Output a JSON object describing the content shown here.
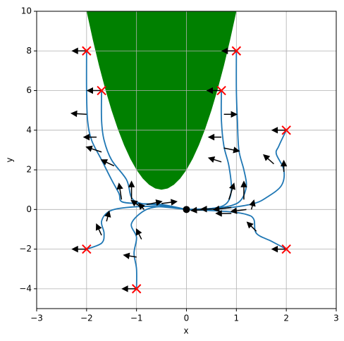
{
  "chart_data": {
    "type": "line",
    "x_label": "x",
    "y_label": "y",
    "xlim": [
      -3,
      3
    ],
    "ylim": [
      -5,
      10
    ],
    "xticks": [
      {
        "value": -3,
        "label": "−3"
      },
      {
        "value": -2,
        "label": "−2"
      },
      {
        "value": -1,
        "label": "−1"
      },
      0,
      1,
      2,
      3
    ],
    "yticks": [
      {
        "value": -4,
        "label": "−4"
      },
      {
        "value": -2,
        "label": "−2"
      },
      0,
      2,
      4,
      6,
      8,
      10
    ],
    "grid": true,
    "obstacle": {
      "color": "#008000",
      "x": [
        -2,
        -1.875,
        -1.75,
        -1.625,
        -1.5,
        -1.375,
        -1.25,
        -1.125,
        -1,
        -0.875,
        -0.75,
        -0.625,
        -0.5,
        -0.375,
        -0.25,
        -0.125,
        0,
        0.125,
        0.25,
        0.375,
        0.5,
        0.625,
        0.75,
        0.875,
        1
      ],
      "y": [
        10,
        8.5625,
        7.25,
        6.0625,
        5,
        4.0625,
        3.25,
        2.5625,
        2,
        1.5625,
        1.25,
        1.0625,
        1,
        1.0625,
        1.25,
        1.5625,
        2,
        2.5625,
        3.25,
        4.0625,
        5,
        6.0625,
        7.25,
        8.5625,
        10
      ]
    },
    "line_color": "#1f77b4",
    "start_color": "#ff0000",
    "series": [
      {
        "x": [
          -2,
          -2,
          -1.98,
          -1.9,
          -1.7,
          -1.5,
          -1.35,
          -1.3,
          -1.0,
          -0.5,
          0
        ],
        "y": [
          8,
          6,
          4.5,
          3.5,
          2.5,
          1.5,
          0.8,
          0.4,
          0.3,
          0.25,
          0
        ]
      },
      {
        "x": [
          1,
          1,
          1.02,
          1.05,
          1.15,
          1.2,
          1.1,
          0.9,
          0.5,
          0
        ],
        "y": [
          8,
          6,
          4.5,
          3,
          2,
          1.2,
          0.5,
          0.2,
          0.05,
          0
        ]
      },
      {
        "x": [
          -1.7,
          -1.7,
          -1.65,
          -1.5,
          -1.2,
          -1.1,
          -0.9,
          -0.5,
          0
        ],
        "y": [
          6,
          4.5,
          3.5,
          2.5,
          1.5,
          0.6,
          0.3,
          0.2,
          0
        ]
      },
      {
        "x": [
          0.7,
          0.7,
          0.75,
          0.85,
          0.9,
          0.8,
          0.5,
          0
        ],
        "y": [
          6,
          4.5,
          3.2,
          2.2,
          1.0,
          0.3,
          0.05,
          0
        ]
      },
      {
        "x": [
          2,
          1.85,
          1.8,
          1.95,
          1.9,
          1.6,
          1.35,
          0.9,
          0.4,
          0
        ],
        "y": [
          4,
          3.2,
          2.8,
          2.0,
          1.2,
          0.6,
          0.3,
          0.1,
          0,
          0
        ]
      },
      {
        "x": [
          2,
          1.7,
          1.4,
          1.35,
          1.2,
          0.8,
          0
        ],
        "y": [
          -2,
          -1.6,
          -1.2,
          -0.5,
          -0.25,
          -0.1,
          0
        ]
      },
      {
        "x": [
          -2,
          -1.7,
          -1.65,
          -1.7,
          -1.55,
          -1.2,
          -0.6,
          0
        ],
        "y": [
          -2,
          -1.7,
          -1.2,
          -0.6,
          -0.1,
          0.1,
          0.15,
          0
        ]
      },
      {
        "x": [
          -1,
          -1.0,
          -1.05,
          -1.0,
          -1.1,
          -0.8,
          -0.4,
          0
        ],
        "y": [
          -4,
          -3,
          -2.2,
          -1.4,
          -0.7,
          0.0,
          0.15,
          0
        ]
      }
    ],
    "arrows": {
      "color": "#000000",
      "x": [
        -2,
        1,
        -1.7,
        0.7,
        2,
        2,
        -2,
        -1,
        -2,
        -1.8,
        -1.7,
        -1.45,
        -1.3,
        -1.1,
        -0.9,
        -0.8,
        -0.5,
        0.75,
        0.7,
        0.75,
        0.7,
        0.85,
        1.15,
        0.9,
        0.6,
        0.4,
        1.95,
        1.75,
        1.3,
        1.4,
        1.2,
        0.9,
        -1.7,
        -1.6,
        -0.9,
        -1.0,
        -0.85
      ],
      "y": [
        8,
        8,
        6,
        6,
        4,
        -2,
        -2,
        -4,
        4.8,
        3.65,
        2.9,
        2.2,
        0.5,
        0.5,
        0.1,
        0.25,
        0.3,
        4.8,
        3.65,
        3.1,
        2.4,
        0.5,
        0.5,
        0.1,
        0.02,
        0.0,
        1.9,
        2.3,
        0.0,
        -1.1,
        0.0,
        -0.2,
        -1.3,
        -0.6,
        -1.5,
        -2.4,
        0.0
      ],
      "u": [
        -0.28,
        -0.28,
        -0.28,
        -0.28,
        -0.28,
        -0.28,
        -0.28,
        -0.28,
        -0.3,
        -0.25,
        -0.3,
        -0.25,
        -0.05,
        0,
        -0.2,
        0.3,
        0.3,
        0.25,
        -0.25,
        0.3,
        -0.25,
        0.1,
        0,
        -0.35,
        -0.3,
        -0.3,
        0,
        -0.2,
        0.05,
        -0.18,
        -0.3,
        -0.3,
        -0.1,
        0.05,
        -0.1,
        -0.25,
        -0.1
      ],
      "v": [
        0,
        0,
        0,
        0,
        0,
        0,
        0,
        0,
        0.05,
        0,
        0.25,
        0.3,
        0.8,
        0.9,
        0.35,
        0.15,
        0.1,
        0,
        0,
        -0.15,
        0.2,
        0.8,
        0.9,
        -0.1,
        0,
        -0.05,
        0.55,
        0.45,
        0.45,
        0.45,
        -0.1,
        0,
        0.55,
        0.5,
        0.5,
        0.1,
        0.3
      ]
    },
    "goal": {
      "x": 0,
      "y": 0,
      "color": "#000000"
    }
  }
}
